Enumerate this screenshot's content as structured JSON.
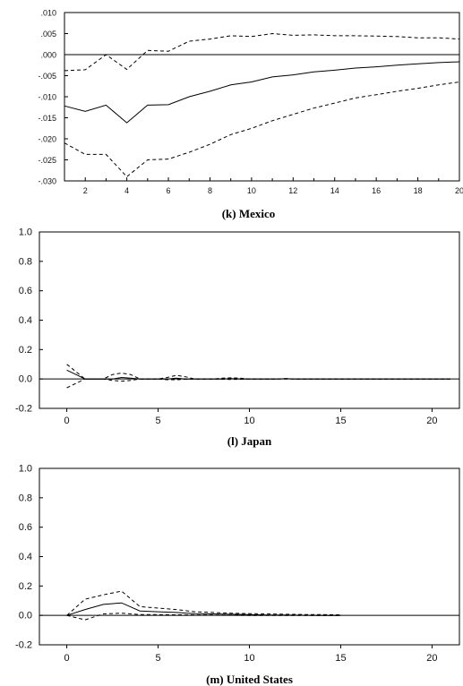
{
  "chart_data": [
    {
      "type": "line",
      "caption": "",
      "x": [
        1,
        2,
        3,
        4,
        5,
        6,
        7,
        8,
        9,
        10,
        11,
        12,
        13,
        14,
        15,
        16,
        17,
        18,
        19,
        20
      ],
      "xticks": [
        2,
        4,
        6,
        8,
        10,
        12,
        14,
        16,
        18,
        20
      ],
      "ytick_labels": [
        ".010",
        ".005",
        ".000",
        "-.005",
        "-.010",
        "-.015",
        "-.020",
        "-.025",
        "-.030"
      ],
      "ylim": [
        -0.03,
        0.01
      ],
      "xlim": [
        1,
        20
      ],
      "zero_line": 0,
      "series": [
        {
          "style": "solid",
          "values": [
            -0.0122,
            -0.0135,
            -0.012,
            -0.0162,
            -0.012,
            -0.0119,
            -0.01,
            -0.0087,
            -0.0072,
            -0.0065,
            -0.0053,
            -0.0048,
            -0.0041,
            -0.0037,
            -0.0032,
            -0.0029,
            -0.0025,
            -0.0022,
            -0.0019,
            -0.0017
          ]
        },
        {
          "style": "dashed",
          "values": [
            -0.0038,
            -0.0036,
            0.0,
            -0.0035,
            0.001,
            0.0008,
            0.0032,
            0.0037,
            0.0045,
            0.0043,
            0.005,
            0.0046,
            0.0047,
            0.0045,
            0.0045,
            0.0044,
            0.0043,
            0.004,
            0.004,
            0.0037
          ]
        },
        {
          "style": "dashed",
          "values": [
            -0.021,
            -0.0237,
            -0.0237,
            -0.029,
            -0.025,
            -0.0248,
            -0.0232,
            -0.0213,
            -0.019,
            -0.0175,
            -0.0157,
            -0.0142,
            -0.0127,
            -0.0115,
            -0.0103,
            -0.0095,
            -0.0087,
            -0.008,
            -0.0072,
            -0.0065
          ]
        }
      ]
    },
    {
      "type": "line",
      "caption": "(k) Mexico",
      "x": [
        0,
        0.5,
        1,
        2,
        2.5,
        3,
        3.5,
        4,
        5,
        5.5,
        6,
        6.5,
        7,
        8,
        8.5,
        9,
        9.5,
        10,
        11,
        11.5,
        12,
        12.5,
        13,
        14,
        15,
        16,
        17,
        18,
        19,
        20,
        21
      ],
      "xticks": [
        0,
        5,
        10,
        15,
        20
      ],
      "ytick_labels": [
        "1.0",
        "0.8",
        "0.6",
        "0.4",
        "0.2",
        "0.0",
        "-0.2"
      ],
      "ylim": [
        -0.2,
        1.0
      ],
      "xlim": [
        -1.5,
        21.5
      ],
      "zero_line": 0,
      "series": [
        {
          "style": "solid",
          "values": [
            0.06,
            0.03,
            0.0,
            0.0,
            0.0,
            0.01,
            0.005,
            0.0,
            0.0,
            0.0,
            0.005,
            0.0,
            0.0,
            0.0,
            0.0,
            0.003,
            0.0,
            0.0,
            0.0,
            0.0,
            0.002,
            0.0,
            0.0,
            0.0,
            0.0,
            0.0,
            0.0,
            0.0,
            0.0,
            0.0,
            0.0
          ]
        },
        {
          "style": "dashed",
          "values": [
            0.1,
            0.05,
            0.0,
            0.0,
            0.03,
            0.04,
            0.03,
            0.0,
            0.0,
            0.01,
            0.025,
            0.015,
            0.0,
            0.0,
            0.005,
            0.008,
            0.005,
            0.0,
            0.0,
            0.0,
            0.003,
            0.0,
            0.0,
            0.0,
            0.0,
            0.0,
            0.0,
            0.0,
            0.0,
            0.0,
            0.0
          ]
        },
        {
          "style": "dashed",
          "values": [
            -0.06,
            -0.03,
            0.0,
            0.0,
            -0.01,
            -0.015,
            -0.01,
            0.0,
            0.0,
            -0.005,
            -0.005,
            -0.002,
            0.0,
            0.0,
            -0.002,
            -0.003,
            -0.002,
            0.0,
            0.0,
            0.0,
            -0.001,
            0.0,
            0.0,
            0.0,
            0.0,
            0.0,
            0.0,
            0.0,
            0.0,
            0.0,
            0.0
          ]
        }
      ]
    },
    {
      "type": "line",
      "caption": "(l) Japan",
      "x": [
        0,
        1,
        2,
        3,
        4,
        5,
        6,
        7,
        8,
        9,
        10,
        11,
        12,
        13,
        14,
        15
      ],
      "xticks": [
        0,
        5,
        10,
        15,
        20
      ],
      "ytick_labels": [
        "1.0",
        "0.8",
        "0.6",
        "0.4",
        "0.2",
        "0.0",
        "-0.2"
      ],
      "ylim": [
        -0.2,
        1.0
      ],
      "xlim": [
        -1.5,
        21.5
      ],
      "zero_line": 0,
      "series": [
        {
          "style": "solid",
          "values": [
            0.0,
            0.04,
            0.075,
            0.085,
            0.03,
            0.025,
            0.02,
            0.012,
            0.01,
            0.008,
            0.005,
            0.003,
            0.002,
            0.001,
            0.0,
            0.0
          ]
        },
        {
          "style": "dashed",
          "values": [
            0.0,
            0.11,
            0.14,
            0.165,
            0.06,
            0.05,
            0.04,
            0.025,
            0.02,
            0.015,
            0.012,
            0.01,
            0.008,
            0.006,
            0.005,
            0.004
          ]
        },
        {
          "style": "dashed",
          "values": [
            0.0,
            -0.03,
            0.01,
            0.015,
            0.005,
            0.005,
            0.004,
            0.003,
            0.002,
            0.001,
            0.0,
            0.0,
            0.0,
            0.0,
            0.0,
            0.0
          ]
        }
      ]
    }
  ],
  "bottom_caption": "(m) United States"
}
